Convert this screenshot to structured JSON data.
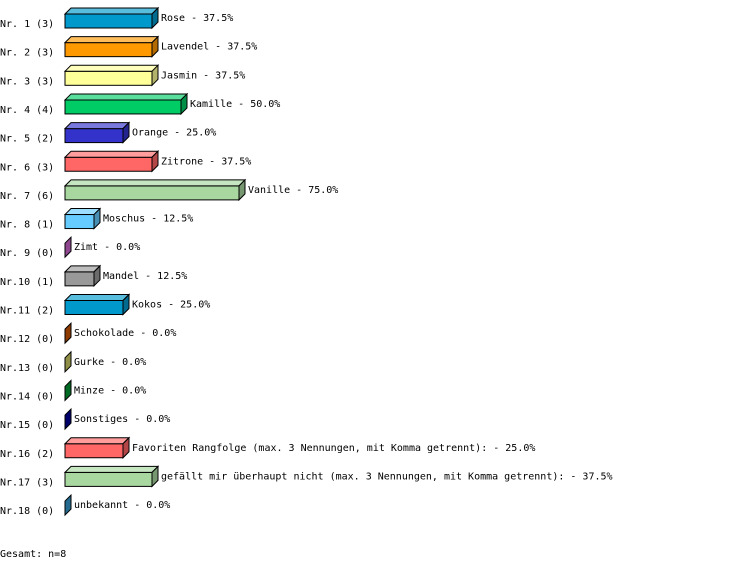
{
  "chart_data": {
    "type": "bar",
    "orientation": "horizontal",
    "style": "3d",
    "xlim": [
      0,
      100
    ],
    "categories": [
      "Nr. 1",
      "Nr. 2",
      "Nr. 3",
      "Nr. 4",
      "Nr. 5",
      "Nr. 6",
      "Nr. 7",
      "Nr. 8",
      "Nr. 9",
      "Nr.10",
      "Nr.11",
      "Nr.12",
      "Nr.13",
      "Nr.14",
      "Nr.15",
      "Nr.16",
      "Nr.17",
      "Nr.18"
    ],
    "counts": [
      3,
      3,
      3,
      4,
      2,
      3,
      6,
      1,
      0,
      1,
      2,
      0,
      0,
      0,
      0,
      2,
      3,
      0
    ],
    "labels": [
      "Rose",
      "Lavendel",
      "Jasmin",
      "Kamille",
      "Orange",
      "Zitrone",
      "Vanille",
      "Moschus",
      "Zimt",
      "Mandel",
      "Kokos",
      "Schokolade",
      "Gurke",
      "Minze",
      "Sonstiges",
      "Favoriten Rangfolge (max. 3 Nennungen, mit Komma getrennt):",
      "gefällt mir überhaupt nicht (max. 3 Nennungen, mit Komma getrennt):",
      "unbekannt"
    ],
    "values": [
      37.5,
      37.5,
      37.5,
      50.0,
      25.0,
      37.5,
      75.0,
      12.5,
      0.0,
      12.5,
      25.0,
      0.0,
      0.0,
      0.0,
      0.0,
      25.0,
      37.5,
      0.0
    ],
    "colors": [
      "#0099cc",
      "#ff9900",
      "#ffff99",
      "#00cc66",
      "#3333cc",
      "#ff6666",
      "#a8d8a0",
      "#66ccff",
      "#cc66cc",
      "#999999",
      "#0099cc",
      "#cc5500",
      "#cccc66",
      "#009933",
      "#000099",
      "#ff6666",
      "#a8d8a0",
      "#3399cc"
    ]
  },
  "footer": "Gesamt: n=8"
}
